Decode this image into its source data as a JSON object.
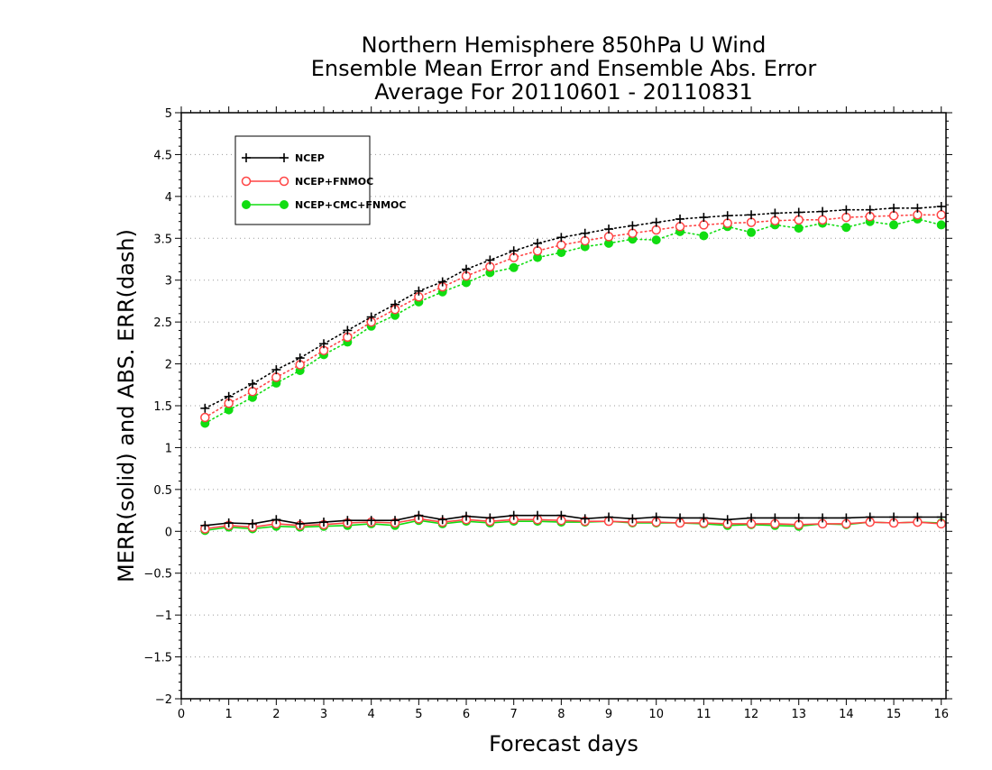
{
  "chart_data": {
    "type": "line",
    "title_lines": [
      "Northern Hemisphere 850hPa U Wind",
      "Ensemble Mean Error and Ensemble Abs. Error",
      "Average For 20110601 - 20110831"
    ],
    "xlabel": "Forecast days",
    "ylabel": "MERR(solid) and ABS. ERR(dash)",
    "xlim": [
      0,
      16.1
    ],
    "ylim": [
      -2,
      5
    ],
    "x_ticks": [
      "0",
      "1",
      "2",
      "3",
      "4",
      "5",
      "6",
      "7",
      "8",
      "9",
      "10",
      "11",
      "12",
      "13",
      "14",
      "15",
      "16"
    ],
    "y_ticks": [
      "−2",
      "−1.5",
      "−1",
      "−0.5",
      "0",
      "0.5",
      "1",
      "1.5",
      "2",
      "2.5",
      "3",
      "3.5",
      "4",
      "4.5",
      "5"
    ],
    "y_tick_values": [
      -2,
      -1.5,
      -1,
      -0.5,
      0,
      0.5,
      1,
      1.5,
      2,
      2.5,
      3,
      3.5,
      4,
      4.5,
      5
    ],
    "grid": "horizontal dotted",
    "legend_position": "top-left",
    "x": [
      0.5,
      1,
      1.5,
      2,
      2.5,
      3,
      3.5,
      4,
      4.5,
      5,
      5.5,
      6,
      6.5,
      7,
      7.5,
      8,
      8.5,
      9,
      9.5,
      10,
      10.5,
      11,
      11.5,
      12,
      12.5,
      13,
      13.5,
      14,
      14.5,
      15,
      15.5,
      16
    ],
    "series": [
      {
        "name": "NCEP",
        "color": "#000000",
        "marker": "plus",
        "merr": [
          0.07,
          0.1,
          0.09,
          0.14,
          0.09,
          0.11,
          0.13,
          0.13,
          0.13,
          0.19,
          0.14,
          0.18,
          0.16,
          0.19,
          0.19,
          0.19,
          0.15,
          0.17,
          0.15,
          0.17,
          0.16,
          0.16,
          0.14,
          0.16,
          0.16,
          0.16,
          0.16,
          0.16,
          0.17,
          0.17,
          0.17,
          0.17
        ],
        "abs_err": [
          1.47,
          1.61,
          1.76,
          1.93,
          2.07,
          2.24,
          2.4,
          2.56,
          2.71,
          2.87,
          2.98,
          3.13,
          3.24,
          3.35,
          3.44,
          3.51,
          3.56,
          3.61,
          3.65,
          3.69,
          3.73,
          3.75,
          3.77,
          3.78,
          3.8,
          3.81,
          3.82,
          3.84,
          3.84,
          3.86,
          3.86,
          3.88
        ]
      },
      {
        "name": "NCEP+FNMOC",
        "color": "#ff4444",
        "marker": "open-circle",
        "merr": [
          0.03,
          0.07,
          0.05,
          0.09,
          0.07,
          0.08,
          0.1,
          0.11,
          0.1,
          0.15,
          0.11,
          0.14,
          0.12,
          0.14,
          0.14,
          0.13,
          0.12,
          0.12,
          0.11,
          0.11,
          0.1,
          0.1,
          0.09,
          0.09,
          0.09,
          0.08,
          0.09,
          0.09,
          0.11,
          0.1,
          0.11,
          0.09
        ],
        "abs_err": [
          1.36,
          1.53,
          1.67,
          1.84,
          1.99,
          2.16,
          2.32,
          2.5,
          2.65,
          2.8,
          2.92,
          3.05,
          3.16,
          3.27,
          3.35,
          3.42,
          3.47,
          3.52,
          3.56,
          3.6,
          3.64,
          3.66,
          3.68,
          3.69,
          3.71,
          3.72,
          3.72,
          3.75,
          3.76,
          3.77,
          3.78,
          3.78
        ]
      },
      {
        "name": "NCEP+CMC+FNMOC",
        "color": "#11dd11",
        "marker": "filled-circle",
        "merr": [
          0.01,
          0.05,
          0.03,
          0.06,
          0.05,
          0.06,
          0.07,
          0.09,
          0.07,
          0.13,
          0.09,
          0.12,
          0.1,
          0.12,
          0.12,
          0.11,
          0.11,
          0.12,
          0.1,
          0.1,
          0.1,
          0.09,
          0.07,
          0.08,
          0.07,
          0.06,
          0.09,
          0.08,
          0.11,
          0.1,
          0.11,
          0.1
        ],
        "abs_err": [
          1.29,
          1.45,
          1.6,
          1.77,
          1.92,
          2.11,
          2.26,
          2.45,
          2.58,
          2.74,
          2.86,
          2.97,
          3.09,
          3.15,
          3.27,
          3.33,
          3.4,
          3.44,
          3.49,
          3.48,
          3.58,
          3.53,
          3.64,
          3.57,
          3.66,
          3.62,
          3.68,
          3.63,
          3.7,
          3.66,
          3.73,
          3.66
        ]
      }
    ]
  }
}
